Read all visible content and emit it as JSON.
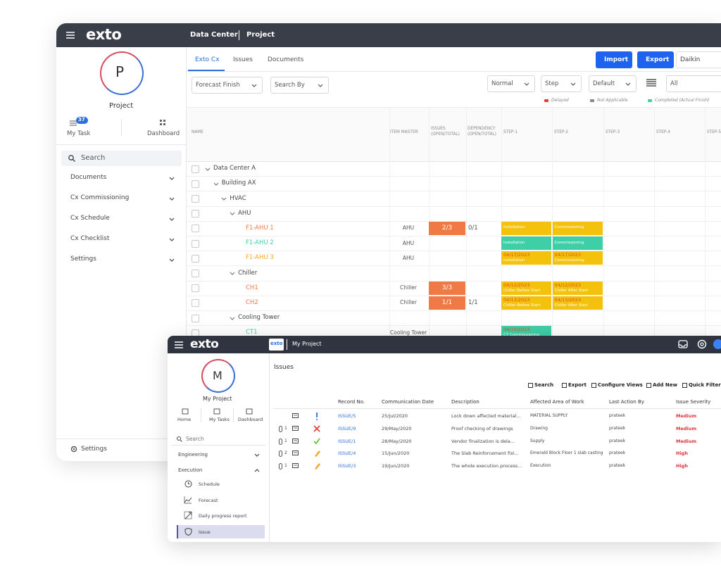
{
  "back": {
    "logo": "exto",
    "breadcrumb": [
      "Data Center",
      "Project"
    ],
    "avatar": "P",
    "project": "Project",
    "nav": [
      {
        "label": "My Task",
        "badge": 37
      },
      {
        "label": "Dashboard"
      }
    ],
    "search": "Search",
    "menu": [
      "Documents",
      "Cx Commissioning",
      "Cx Schedule",
      "Cx Checklist",
      "Settings"
    ],
    "settings": "Settings",
    "tabs": [
      "Exto Cx",
      "Issues",
      "Documents"
    ],
    "buttons": [
      "Import",
      "Export"
    ],
    "client": "Daikin",
    "filters": [
      "Forecast Finish",
      "Search By"
    ],
    "selects": [
      "Normal",
      "Step",
      "Default",
      "All"
    ],
    "legend": [
      {
        "label": "Delayed",
        "color": "#e53935"
      },
      {
        "label": "Not Applicable",
        "color": "#888888"
      },
      {
        "label": "Completed (Actual Finish)",
        "color": "#3ecfa6"
      }
    ],
    "columns": [
      "NAME",
      "ITEM MASTER",
      "ISSUES (OPEN/TOTAL)",
      "DEPENDENCY (OPEN/TOTAL)",
      "STEP-1",
      "STEP-2",
      "STEP-3",
      "STEP-4",
      "STEP-5"
    ],
    "rows": [
      {
        "name": "Data Center A",
        "level": 0
      },
      {
        "name": "Building AX",
        "level": 1
      },
      {
        "name": "HVAC",
        "level": 2
      },
      {
        "name": "AHU",
        "level": 3
      },
      {
        "name": "F1-AHU 1",
        "level": 4,
        "color": "#f07a45",
        "master": "AHU",
        "issues": "2/3",
        "dependency": "0/1",
        "steps": [
          {
            "label": "Installation",
            "color": "#f4c20d"
          },
          {
            "label": "Commissioning",
            "color": "#f4c20d"
          }
        ]
      },
      {
        "name": "F1-AHU 2",
        "level": 4,
        "color": "#3ecfa6",
        "master": "AHU",
        "steps": [
          {
            "label": "Installation",
            "color": "#3ecfa6"
          },
          {
            "label": "Commissioning",
            "color": "#3ecfa6"
          }
        ]
      },
      {
        "name": "F1-AHU 3",
        "level": 4,
        "color": "#f4a62a",
        "master": "AHU",
        "steps": [
          {
            "date": "04/17/2023",
            "label": "Installation",
            "color": "#f4c20d"
          },
          {
            "date": "04/17/2023",
            "label": "Commissioning",
            "color": "#f4c20d"
          }
        ]
      },
      {
        "name": "Chiller",
        "level": 3
      },
      {
        "name": "CH1",
        "level": 4,
        "color": "#f07a45",
        "master": "Chiller",
        "issues": "3/3",
        "steps": [
          {
            "date": "04/12/2023",
            "label": "Chiller Before Start",
            "color": "#f4c20d"
          },
          {
            "date": "04/12/2023",
            "label": "Chiller After Start",
            "color": "#f4c20d"
          }
        ]
      },
      {
        "name": "CH2",
        "level": 4,
        "color": "#f07a45",
        "master": "Chiller",
        "issues": "1/1",
        "dependency": "1/1",
        "steps": [
          {
            "date": "04/13/2023",
            "label": "Chiller Before Start",
            "color": "#f4c20d"
          },
          {
            "date": "04/13/2023",
            "label": "Chiller After Start",
            "color": "#f4c20d"
          }
        ]
      },
      {
        "name": "Cooling Tower",
        "level": 3
      },
      {
        "name": "CT1",
        "level": 4,
        "color": "#3ecfa6",
        "master": "Cooling Tower",
        "steps": [
          {
            "date": "04/10/2023",
            "label": "CT Commissioning",
            "color": "#3ecfa6"
          }
        ]
      }
    ]
  },
  "front": {
    "logo": "exto",
    "app_badge": "exto",
    "breadcrumb": "My Project",
    "avatar": "M",
    "project": "My Project",
    "nav": [
      "Home",
      "My Tasks",
      "Dashboard"
    ],
    "search": "Search",
    "menu": [
      "Engineering",
      "Execution"
    ],
    "submenu": [
      "Schedule",
      "Forecast",
      "Daily progress report",
      "Issue"
    ],
    "title": "Issues",
    "toolbar": [
      "Search",
      "Export",
      "Configure Views",
      "Add New",
      "Quick Filter"
    ],
    "columns": [
      "Record No.",
      "Communication Date",
      "Description",
      "Affected Area of Work",
      "Last Action By",
      "Issue Severity"
    ],
    "rows": [
      {
        "attachments": null,
        "icon": "alert",
        "record": "ISSUE/5",
        "date": "25/Jul/2020",
        "description": "Lock down affected material...",
        "area": "MATERIAL SUPPLY",
        "by": "prateek",
        "severity": "Medium"
      },
      {
        "attachments": "1",
        "icon": "rejected",
        "record": "ISSUE/9",
        "date": "29/May/2020",
        "description": "Proof checking of drawings",
        "area": "Drawing",
        "by": "prateek",
        "severity": "Medium"
      },
      {
        "attachments": "1",
        "icon": "approved",
        "record": "ISSUE/1",
        "date": "28/May/2020",
        "description": "Vendor finalization is dela...",
        "area": "Supply",
        "by": "prateek",
        "severity": "Medium"
      },
      {
        "attachments": "2",
        "icon": "edit",
        "record": "ISSUE/4",
        "date": "15/Jun/2020",
        "description": "The Slab Reinforcement fixi...",
        "area": "Emerald Block Floor 1 slab casting",
        "by": "prateek",
        "severity": "High"
      },
      {
        "attachments": "1",
        "icon": "edit",
        "record": "ISSUE/3",
        "date": "19/Jun/2020",
        "description": "The whole execution process...",
        "area": "Execution",
        "by": "prateek",
        "severity": "High"
      }
    ]
  }
}
